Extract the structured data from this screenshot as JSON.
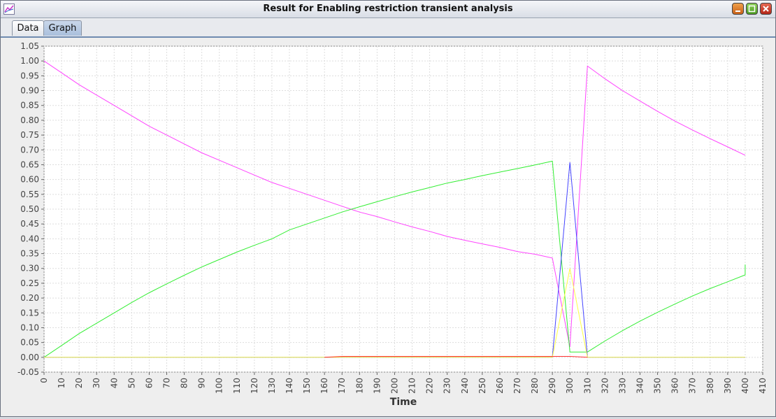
{
  "window": {
    "title": "Result for Enabling restriction transient analysis",
    "icons": [
      "chart-app-icon",
      "minimize-icon",
      "maximize-icon",
      "close-icon"
    ]
  },
  "tabs": [
    {
      "label": "Data",
      "selected": false
    },
    {
      "label": "Graph",
      "selected": true
    }
  ],
  "chart_data": {
    "type": "line",
    "xlabel": "Time",
    "ylabel": "",
    "xlim": [
      0,
      410
    ],
    "ylim": [
      -0.05,
      1.05
    ],
    "xticks": [
      0,
      10,
      20,
      30,
      40,
      50,
      60,
      70,
      80,
      90,
      100,
      110,
      120,
      130,
      140,
      150,
      160,
      170,
      180,
      190,
      200,
      210,
      220,
      230,
      240,
      250,
      260,
      270,
      280,
      290,
      300,
      310,
      320,
      330,
      340,
      350,
      360,
      370,
      380,
      390,
      400,
      410
    ],
    "yticks": [
      "-0.05",
      "0.00",
      "0.05",
      "0.10",
      "0.15",
      "0.20",
      "0.25",
      "0.30",
      "0.35",
      "0.40",
      "0.45",
      "0.50",
      "0.55",
      "0.60",
      "0.65",
      "0.70",
      "0.75",
      "0.80",
      "0.85",
      "0.90",
      "0.95",
      "1.00",
      "1.05"
    ],
    "grid": true,
    "series": [
      {
        "color": "#ff44ff",
        "points": [
          [
            0,
            1.0
          ],
          [
            10,
            0.96
          ],
          [
            20,
            0.92
          ],
          [
            30,
            0.885
          ],
          [
            40,
            0.85
          ],
          [
            50,
            0.815
          ],
          [
            60,
            0.78
          ],
          [
            70,
            0.75
          ],
          [
            80,
            0.72
          ],
          [
            90,
            0.69
          ],
          [
            100,
            0.665
          ],
          [
            110,
            0.64
          ],
          [
            120,
            0.615
          ],
          [
            130,
            0.59
          ],
          [
            140,
            0.57
          ],
          [
            150,
            0.55
          ],
          [
            160,
            0.53
          ],
          [
            170,
            0.51
          ],
          [
            180,
            0.49
          ],
          [
            190,
            0.475
          ],
          [
            200,
            0.457
          ],
          [
            210,
            0.44
          ],
          [
            220,
            0.425
          ],
          [
            230,
            0.408
          ],
          [
            240,
            0.395
          ],
          [
            250,
            0.383
          ],
          [
            260,
            0.371
          ],
          [
            270,
            0.357
          ],
          [
            280,
            0.348
          ],
          [
            290,
            0.335
          ],
          [
            300,
            0.035
          ],
          [
            310,
            0.983
          ],
          [
            320,
            0.94
          ],
          [
            330,
            0.9
          ],
          [
            340,
            0.865
          ],
          [
            350,
            0.83
          ],
          [
            360,
            0.797
          ],
          [
            370,
            0.767
          ],
          [
            380,
            0.738
          ],
          [
            390,
            0.71
          ],
          [
            400,
            0.682
          ]
        ]
      },
      {
        "color": "#33ee33",
        "points": [
          [
            0,
            0.0
          ],
          [
            10,
            0.04
          ],
          [
            20,
            0.08
          ],
          [
            30,
            0.115
          ],
          [
            40,
            0.15
          ],
          [
            50,
            0.185
          ],
          [
            60,
            0.218
          ],
          [
            70,
            0.248
          ],
          [
            80,
            0.277
          ],
          [
            90,
            0.305
          ],
          [
            100,
            0.33
          ],
          [
            110,
            0.355
          ],
          [
            120,
            0.378
          ],
          [
            130,
            0.4
          ],
          [
            140,
            0.43
          ],
          [
            150,
            0.45
          ],
          [
            160,
            0.47
          ],
          [
            170,
            0.49
          ],
          [
            180,
            0.508
          ],
          [
            190,
            0.525
          ],
          [
            200,
            0.542
          ],
          [
            210,
            0.558
          ],
          [
            220,
            0.573
          ],
          [
            230,
            0.588
          ],
          [
            240,
            0.6
          ],
          [
            250,
            0.613
          ],
          [
            260,
            0.625
          ],
          [
            270,
            0.637
          ],
          [
            280,
            0.649
          ],
          [
            290,
            0.662
          ],
          [
            300,
            0.018
          ],
          [
            310,
            0.018
          ],
          [
            320,
            0.055
          ],
          [
            330,
            0.09
          ],
          [
            340,
            0.122
          ],
          [
            350,
            0.152
          ],
          [
            360,
            0.18
          ],
          [
            370,
            0.207
          ],
          [
            380,
            0.232
          ],
          [
            390,
            0.255
          ],
          [
            400,
            0.278
          ],
          [
            400,
            0.313
          ]
        ]
      },
      {
        "color": "#4444ff",
        "points": [
          [
            0,
            0.0
          ],
          [
            290,
            0.0
          ],
          [
            300,
            0.658
          ],
          [
            310,
            0.0
          ],
          [
            400,
            0.0
          ]
        ]
      },
      {
        "color": "#ffff44",
        "points": [
          [
            0,
            0.0
          ],
          [
            290,
            0.0
          ],
          [
            300,
            0.3
          ],
          [
            310,
            0.0
          ],
          [
            400,
            0.0
          ]
        ]
      },
      {
        "color": "#ff3333",
        "points": [
          [
            160,
            0.0
          ],
          [
            170,
            0.003
          ],
          [
            290,
            0.003
          ],
          [
            300,
            0.003
          ],
          [
            310,
            0.0
          ]
        ]
      }
    ]
  }
}
